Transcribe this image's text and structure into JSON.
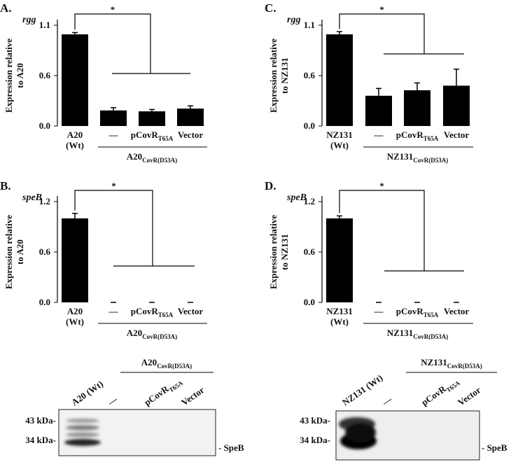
{
  "chart_data": [
    {
      "type": "bar",
      "panel": "A.",
      "gene": "rgg",
      "ylabel": [
        "Expression relative",
        "to A20"
      ],
      "categories": [
        "A20",
        "—",
        "pCovR",
        "Vector"
      ],
      "category_line2": [
        "(Wt)",
        null,
        null,
        null
      ],
      "category_subscripts": [
        null,
        null,
        "T65A",
        null
      ],
      "group_label": "A20",
      "group_subscript": "CovR(D53A)",
      "values": [
        1.0,
        0.17,
        0.16,
        0.19
      ],
      "errors": [
        0.02,
        0.03,
        0.02,
        0.03
      ],
      "color": "#000000",
      "ylim": [
        0,
        1.1
      ],
      "yticks": [
        {
          "value": 0,
          "label": "0.0"
        },
        {
          "value": 0.55,
          "label": "0.6"
        },
        1.1
      ],
      "significance": "*"
    },
    {
      "type": "bar",
      "panel": "B.",
      "gene": "speB",
      "ylabel": [
        "Expression relative",
        "to A20"
      ],
      "categories": [
        "A20",
        "—",
        "pCovR",
        "Vector"
      ],
      "category_line2": [
        "(Wt)",
        null,
        null,
        null
      ],
      "category_subscripts": [
        null,
        null,
        "T65A",
        null
      ],
      "group_label": "A20",
      "group_subscript": "CovR(D53A)",
      "values": [
        1.0,
        0,
        0,
        0
      ],
      "errors": [
        0.06,
        0,
        0,
        0
      ],
      "color": "#000000",
      "ylim": [
        0,
        1.2
      ],
      "yticks": [
        {
          "value": 0,
          "label": "0.0"
        },
        0.6,
        1.2
      ],
      "significance": "*"
    },
    {
      "type": "bar",
      "panel": "C.",
      "gene": "rgg",
      "ylabel": [
        "Expression relative",
        "to NZ131"
      ],
      "categories": [
        "NZ131",
        "—",
        "pCovR",
        "Vector"
      ],
      "category_line2": [
        "(Wt)",
        null,
        null,
        null
      ],
      "category_subscripts": [
        null,
        null,
        "T65A",
        null
      ],
      "group_label": "NZ131",
      "group_subscript": "CovR(D53A)",
      "values": [
        1.0,
        0.33,
        0.39,
        0.44
      ],
      "errors": [
        0.03,
        0.08,
        0.08,
        0.18
      ],
      "color": "#000000",
      "ylim": [
        0,
        1.1
      ],
      "yticks": [
        {
          "value": 0,
          "label": "0.0"
        },
        {
          "value": 0.55,
          "label": "0.6"
        },
        1.1
      ],
      "significance": "*"
    },
    {
      "type": "bar",
      "panel": "D.",
      "gene": "speB",
      "ylabel": [
        "Expression relative",
        "to NZ131"
      ],
      "categories": [
        "NZ131",
        "—",
        "pCovR",
        "Vector"
      ],
      "category_line2": [
        "(Wt)",
        null,
        null,
        null
      ],
      "category_subscripts": [
        null,
        null,
        "T65A",
        null
      ],
      "group_label": "NZ131",
      "group_subscript": "CovR(D53A)",
      "values": [
        1.0,
        0,
        0,
        0
      ],
      "errors": [
        0.03,
        0,
        0,
        0
      ],
      "color": "#000000",
      "ylim": [
        0,
        1.2
      ],
      "yticks": [
        {
          "value": 0,
          "label": "0.0"
        },
        0.6,
        1.2
      ],
      "significance": "*"
    }
  ],
  "blots": [
    {
      "group_label": "A20",
      "group_subscript": "CovR(D53A)",
      "lanes": [
        "A20 (Wt)",
        "—",
        "pCovR",
        "Vector"
      ],
      "lane_subscripts": [
        null,
        null,
        "T65A",
        null
      ],
      "markers": [
        "43 kDa-",
        "34 kDa-"
      ],
      "band_label": "- SpeB"
    },
    {
      "group_label": "NZ131",
      "group_subscript": "CovR(D53A)",
      "lanes": [
        "NZ131 (Wt)",
        "—",
        "pCovR",
        "Vector"
      ],
      "lane_subscripts": [
        null,
        null,
        "T65A",
        null
      ],
      "markers": [
        "43 kDa-",
        "34 kDa-"
      ],
      "band_label": "- SpeB"
    }
  ]
}
